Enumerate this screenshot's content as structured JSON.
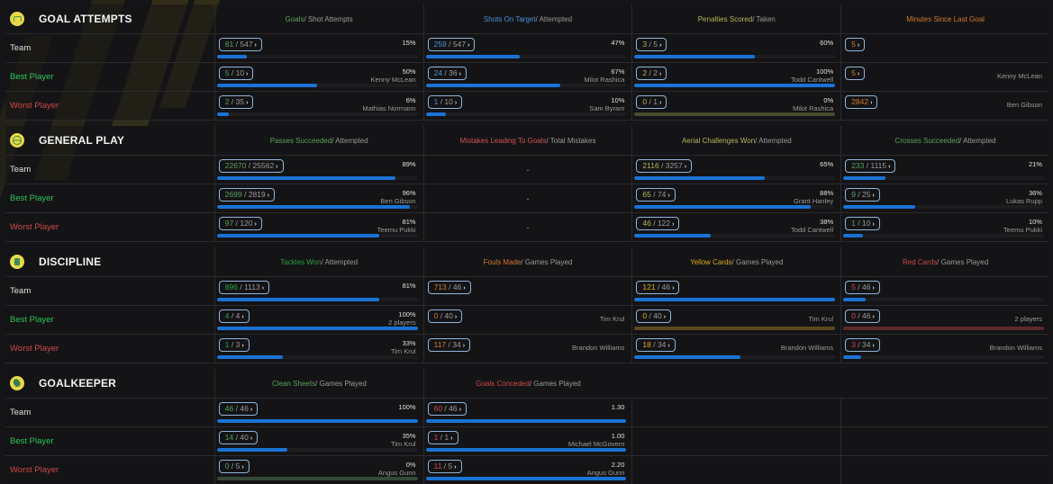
{
  "colors": {
    "accent_blue": "#1a73d4",
    "pill_border": "#8fb4d8",
    "green": "#5aa05a",
    "bright_green": "#2ec45a",
    "blue_text": "#4a90d8",
    "olive": "#b4b45a",
    "orange": "#d07830",
    "red": "#d04848",
    "yellow": "#e0a820"
  },
  "row_labels": {
    "team": "Team",
    "best": "Best Player",
    "worst": "Worst Player"
  },
  "sections": [
    {
      "title": "GOAL ATTEMPTS",
      "icon": "goal-icon",
      "columns": [
        {
          "head_main": "Goals",
          "head_rest": " / Shot Attempts",
          "head_color": "#5aa05a",
          "rows": [
            {
              "num": "81",
              "den": "547",
              "pct": "15%",
              "name": "",
              "fill": 0.15
            },
            {
              "num": "5",
              "den": "10",
              "pct": "50%",
              "name": "Kenny McLean",
              "fill": 0.5
            },
            {
              "num": "2",
              "den": "35",
              "pct": "6%",
              "name": "Mathias Normann",
              "fill": 0.06
            }
          ]
        },
        {
          "head_main": "Shots On Target",
          "head_rest": " / Attempted",
          "head_color": "#4a90d8",
          "rows": [
            {
              "num": "259",
              "den": "547",
              "pct": "47%",
              "name": "",
              "fill": 0.47
            },
            {
              "num": "24",
              "den": "36",
              "pct": "67%",
              "name": "Milot Rashica",
              "fill": 0.67
            },
            {
              "num": "1",
              "den": "10",
              "pct": "10%",
              "name": "Sam Byram",
              "fill": 0.1
            }
          ]
        },
        {
          "head_main": "Penalties Scored",
          "head_rest": " / Taken",
          "head_color": "#b4b45a",
          "rows": [
            {
              "num": "3",
              "den": "5",
              "pct": "60%",
              "name": "",
              "fill": 0.6
            },
            {
              "num": "2",
              "den": "2",
              "pct": "100%",
              "name": "Todd Cantwell",
              "fill": 1.0
            },
            {
              "num": "0",
              "den": "1",
              "pct": "0%",
              "name": "Milot Rashica",
              "fill": 0,
              "zero_color": "#4a4a30"
            }
          ]
        },
        {
          "head_main": "Minutes Since Last Goal",
          "head_rest": "",
          "head_color": "#d07830",
          "single": true,
          "rows": [
            {
              "num": "5",
              "name": ""
            },
            {
              "num": "5",
              "name": "Kenny McLean"
            },
            {
              "num": "2842",
              "name": "Ben Gibson"
            }
          ]
        }
      ]
    },
    {
      "title": "GENERAL PLAY",
      "icon": "ball-icon",
      "columns": [
        {
          "head_main": "Passes Succeeded",
          "head_rest": " / Attempted",
          "head_color": "#5aa05a",
          "rows": [
            {
              "num": "22670",
              "den": "25562",
              "pct": "89%",
              "name": "",
              "fill": 0.89
            },
            {
              "num": "2699",
              "den": "2819",
              "pct": "96%",
              "name": "Ben Gibson",
              "fill": 0.96
            },
            {
              "num": "97",
              "den": "120",
              "pct": "81%",
              "name": "Teemu Pukki",
              "fill": 0.81
            }
          ]
        },
        {
          "head_main": "Mistakes Leading To Goals",
          "head_rest": " / Total Mistakes",
          "head_color": "#d05050",
          "dash": true,
          "rows": [
            {
              "dash": "-"
            },
            {
              "dash": "-"
            },
            {
              "dash": "-"
            }
          ]
        },
        {
          "head_main": "Aerial Challenges Won",
          "head_rest": " / Attempted",
          "head_color": "#b4b45a",
          "rows": [
            {
              "num": "2116",
              "den": "3257",
              "pct": "65%",
              "name": "",
              "fill": 0.65
            },
            {
              "num": "65",
              "den": "74",
              "pct": "88%",
              "name": "Grant Hanley",
              "fill": 0.88
            },
            {
              "num": "46",
              "den": "122",
              "pct": "38%",
              "name": "Todd Cantwell",
              "fill": 0.38
            }
          ]
        },
        {
          "head_main": "Crosses Succeeded",
          "head_rest": " / Attempted",
          "head_color": "#5aa05a",
          "rows": [
            {
              "num": "233",
              "den": "1115",
              "pct": "21%",
              "name": "",
              "fill": 0.21
            },
            {
              "num": "9",
              "den": "25",
              "pct": "36%",
              "name": "Lukas Rupp",
              "fill": 0.36
            },
            {
              "num": "1",
              "den": "10",
              "pct": "10%",
              "name": "Teemu Pukki",
              "fill": 0.1
            }
          ]
        }
      ]
    },
    {
      "title": "DISCIPLINE",
      "icon": "card-icon",
      "columns": [
        {
          "head_main": "Tackles Won",
          "head_rest": " / Attempted",
          "head_color": "#2ea040",
          "rows": [
            {
              "num": "896",
              "den": "1113",
              "pct": "81%",
              "name": "",
              "fill": 0.81
            },
            {
              "num": "4",
              "den": "4",
              "pct": "100%",
              "name": "2 players",
              "fill": 1.0
            },
            {
              "num": "1",
              "den": "3",
              "pct": "33%",
              "name": "Tim Krul",
              "fill": 0.33
            }
          ]
        },
        {
          "head_main": "Fouls Made",
          "head_rest": " / Games Played",
          "head_color": "#d07830",
          "nobar": true,
          "rows": [
            {
              "num": "713",
              "den": "46",
              "name": ""
            },
            {
              "num": "0",
              "den": "40",
              "name": "Tim Krul"
            },
            {
              "num": "117",
              "den": "34",
              "name": "Brandon Williams"
            }
          ]
        },
        {
          "head_main": "Yellow Cards",
          "head_rest": " / Games Played",
          "head_color": "#e0a820",
          "rows": [
            {
              "num": "121",
              "den": "46",
              "pct": "",
              "name": "",
              "fill": 1.0
            },
            {
              "num": "0",
              "den": "40",
              "pct": "",
              "name": "Tim Krul",
              "fill": 0,
              "zero_color": "#5a4a20"
            },
            {
              "num": "18",
              "den": "34",
              "pct": "",
              "name": "Brandon Williams",
              "fill": 0.53
            }
          ]
        },
        {
          "head_main": "Red Cards",
          "head_rest": " / Games Played",
          "head_color": "#d04848",
          "rows": [
            {
              "num": "5",
              "den": "46",
              "pct": "",
              "name": "",
              "fill": 0.11
            },
            {
              "num": "0",
              "den": "46",
              "pct": "",
              "name": "2 players",
              "fill": 0,
              "zero_color": "#5a2a2a"
            },
            {
              "num": "3",
              "den": "34",
              "pct": "",
              "name": "Brandon Williams",
              "fill": 0.09
            }
          ]
        }
      ]
    },
    {
      "title": "GOALKEEPER",
      "icon": "glove-icon",
      "columns": [
        {
          "head_main": "Clean Sheets",
          "head_rest": " / Games Played",
          "head_color": "#5aa05a",
          "rows": [
            {
              "num": "46",
              "den": "46",
              "pct": "100%",
              "name": "",
              "fill": 1.0
            },
            {
              "num": "14",
              "den": "40",
              "pct": "35%",
              "name": "Tim Krul",
              "fill": 0.35
            },
            {
              "num": "0",
              "den": "5",
              "pct": "0%",
              "name": "Angus Gunn",
              "fill": 0,
              "zero_color": "#34483a"
            }
          ]
        },
        {
          "head_main": "Goals Conceded",
          "head_rest": " / Games Played",
          "head_color": "#d04848",
          "rows": [
            {
              "num": "60",
              "den": "46",
              "pct": "1.30",
              "name": "",
              "fill": 1.0
            },
            {
              "num": "1",
              "den": "1",
              "pct": "1.00",
              "name": "Michael McGovern",
              "fill": 1.0
            },
            {
              "num": "11",
              "den": "5",
              "pct": "2.20",
              "name": "Angus Gunn",
              "fill": 1.0
            }
          ]
        }
      ]
    }
  ]
}
